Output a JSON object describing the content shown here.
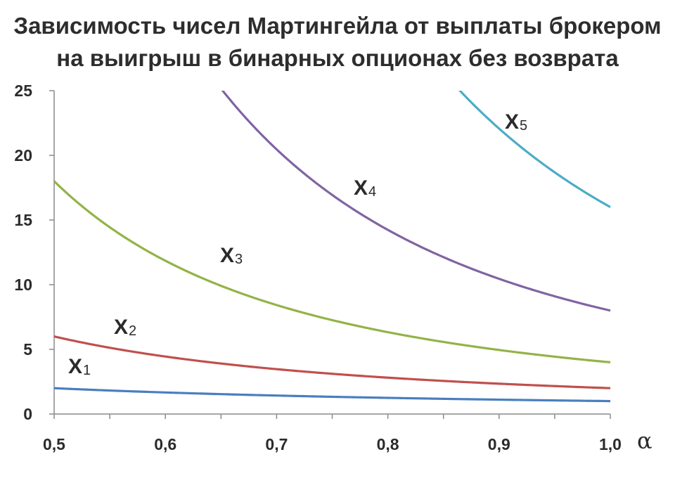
{
  "chart_data": {
    "type": "line",
    "title_lines": [
      "Зависимость чисел Мартингейла от выплаты брокером",
      "на  выигрыш в бинарных опционах без возврата"
    ],
    "xlabel": "α",
    "ylabel": "",
    "xlim": [
      0.5,
      1.0
    ],
    "ylim": [
      0,
      25
    ],
    "x_ticks": [
      0.5,
      0.6,
      0.7,
      0.8,
      0.9,
      1.0
    ],
    "x_tick_labels": [
      "0,5",
      "0,6",
      "0,7",
      "0,8",
      "0,9",
      "1,0"
    ],
    "y_ticks": [
      0,
      5,
      10,
      15,
      20,
      25
    ],
    "y_tick_labels": [
      "0",
      "5",
      "10",
      "15",
      "20",
      "25"
    ],
    "grid": false,
    "series": [
      {
        "name": "X1",
        "label_main": "X",
        "label_sub": "1",
        "color": "#4a7ebf",
        "order": 1
      },
      {
        "name": "X2",
        "label_main": "X",
        "label_sub": "2",
        "color": "#c0504d",
        "order": 2
      },
      {
        "name": "X3",
        "label_main": "X",
        "label_sub": "3",
        "color": "#93b347",
        "order": 3
      },
      {
        "name": "X4",
        "label_main": "X",
        "label_sub": "4",
        "color": "#8064a2",
        "order": 4
      },
      {
        "name": "X5",
        "label_main": "X",
        "label_sub": "5",
        "color": "#4bacc6",
        "order": 5
      }
    ]
  }
}
